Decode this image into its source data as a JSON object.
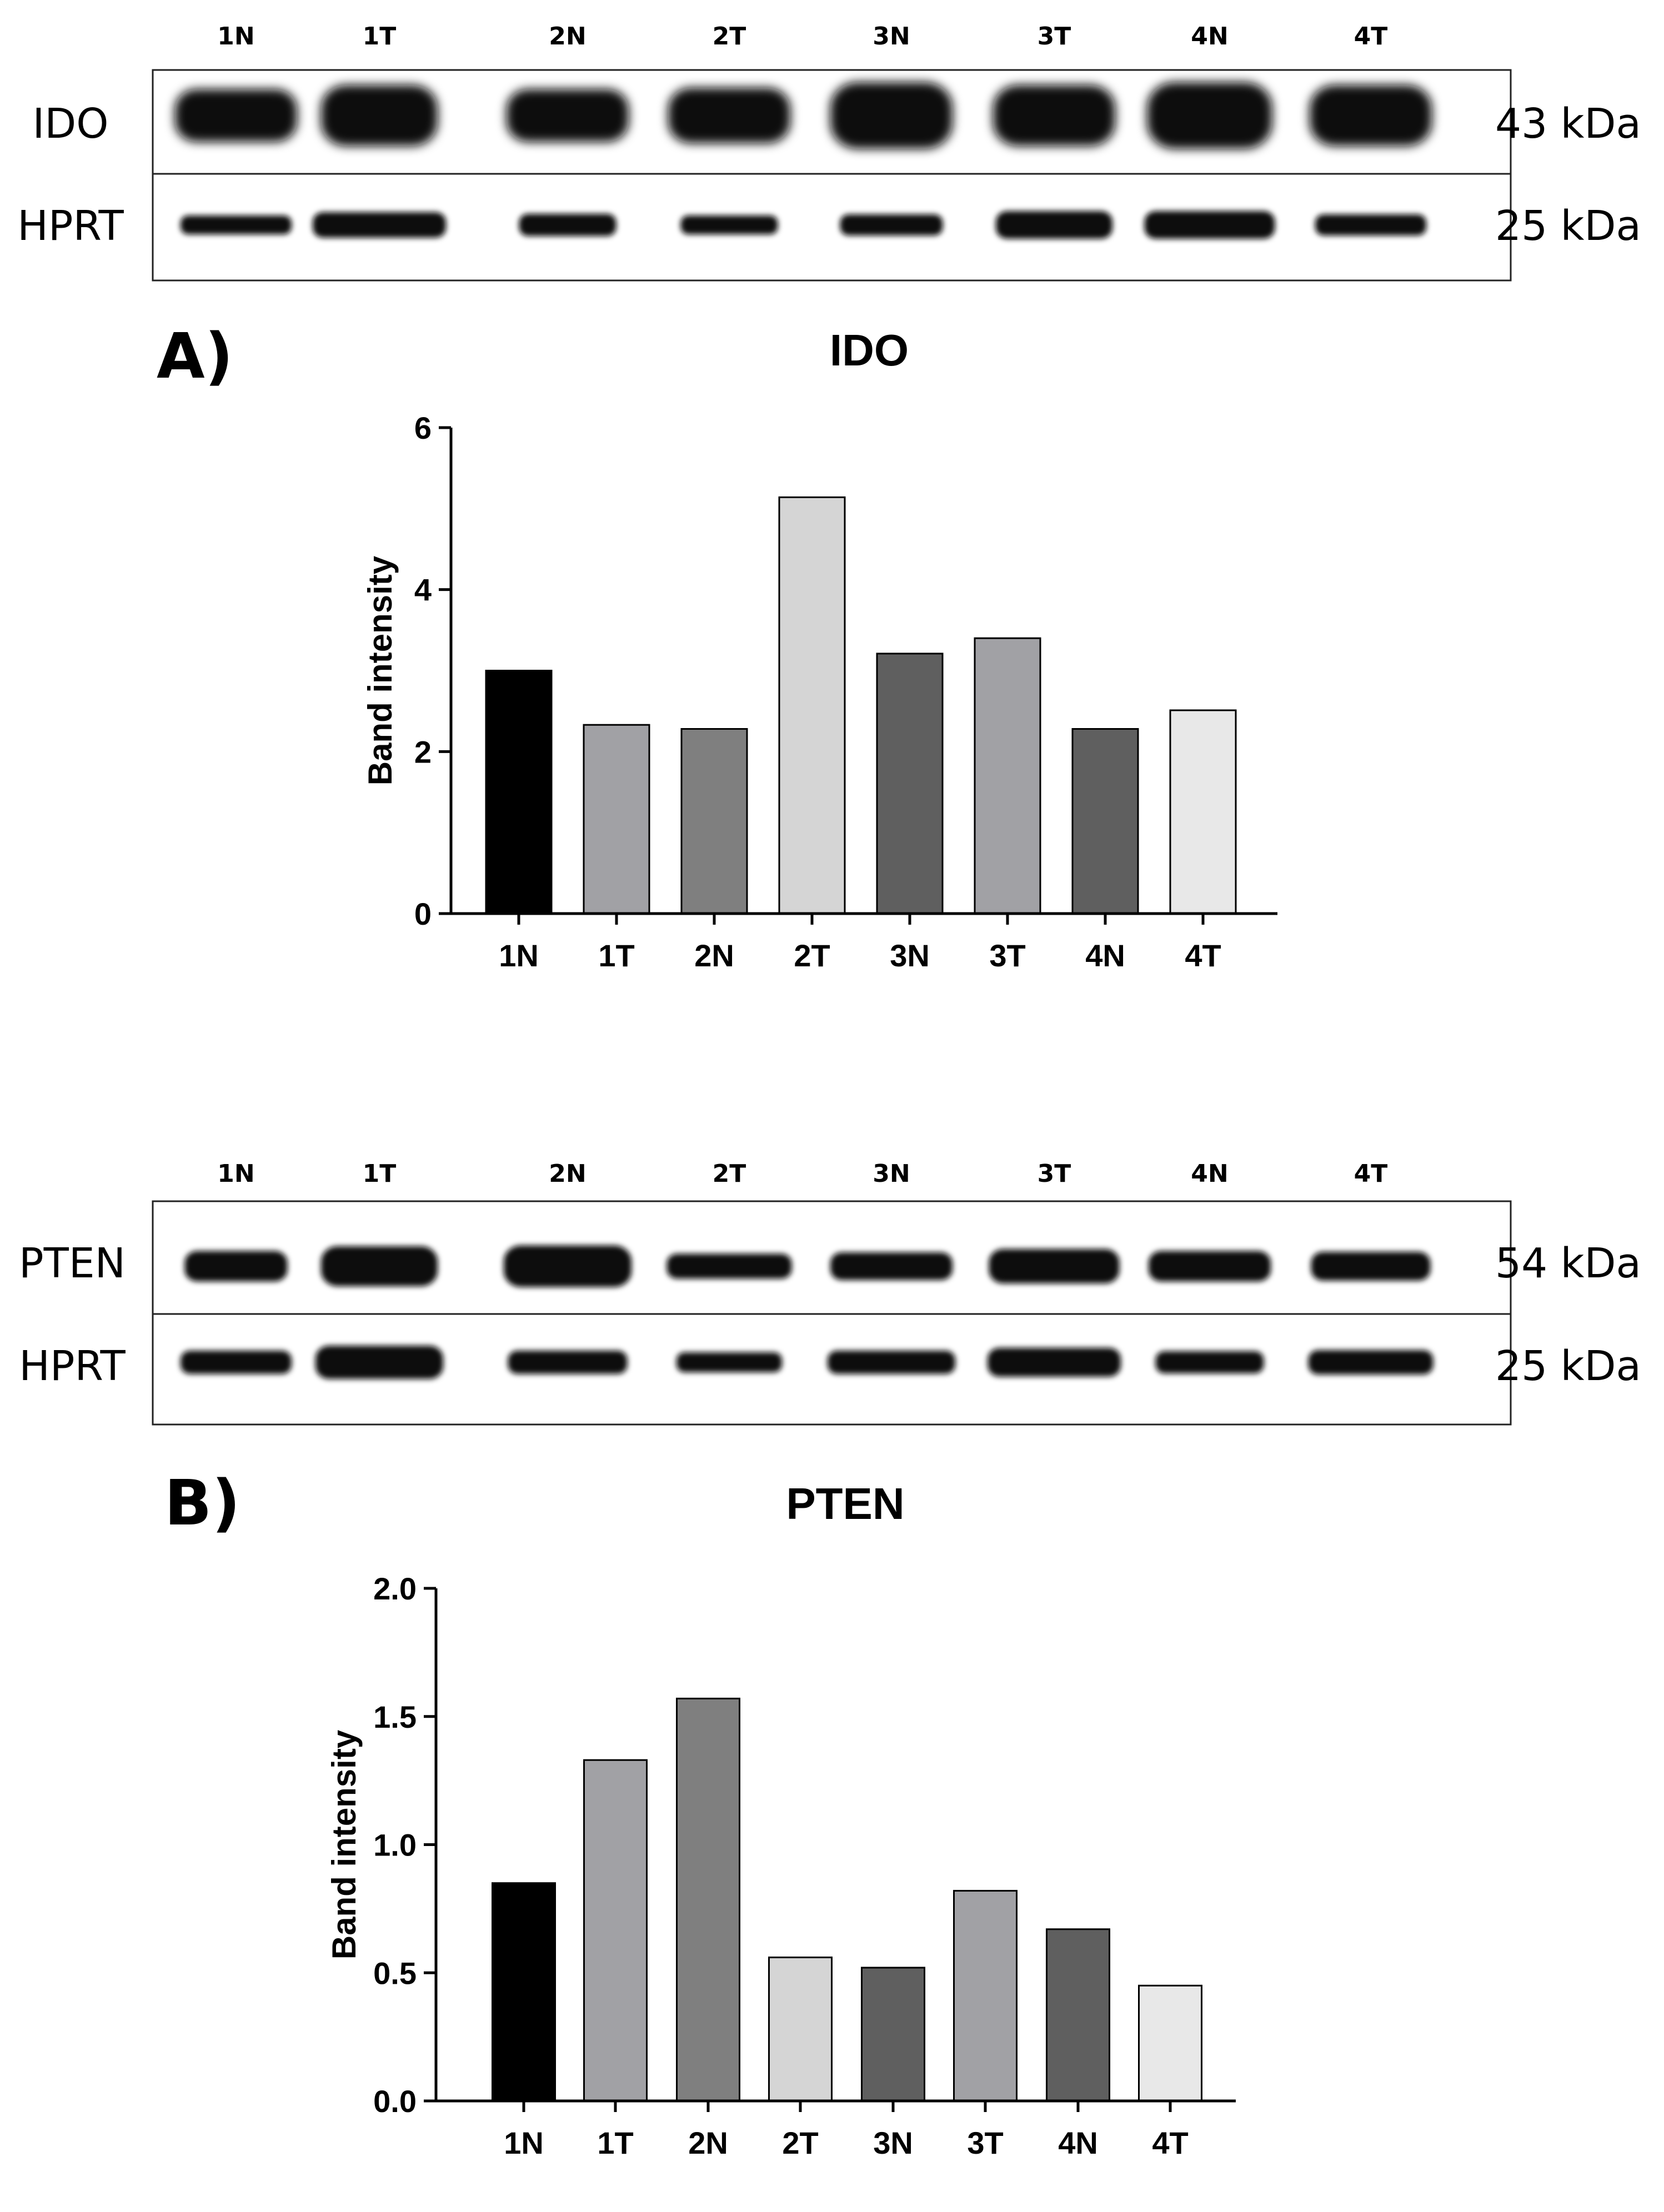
{
  "figure": {
    "panels": [
      {
        "letter": "A)",
        "blot": {
          "lanes": [
            "1N",
            "1T",
            "2N",
            "2T",
            "3N",
            "3T",
            "4N",
            "4T"
          ],
          "rows": [
            {
              "protein": "IDO",
              "size": "43 kDa"
            },
            {
              "protein": "HPRT",
              "size": "25 kDa"
            }
          ]
        }
      },
      {
        "letter": "B)",
        "blot": {
          "lanes": [
            "1N",
            "1T",
            "2N",
            "2T",
            "3N",
            "3T",
            "4N",
            "4T"
          ],
          "rows": [
            {
              "protein": "PTEN",
              "size": "54 kDa"
            },
            {
              "protein": "HPRT",
              "size": "25 kDa"
            }
          ]
        }
      }
    ]
  },
  "chart_data": [
    {
      "type": "bar",
      "title": "IDO",
      "xlabel": "",
      "ylabel": "Band intensity",
      "categories": [
        "1N",
        "1T",
        "2N",
        "2T",
        "3N",
        "3T",
        "4N",
        "4T"
      ],
      "values": [
        3.0,
        2.33,
        2.28,
        5.14,
        3.21,
        3.4,
        2.28,
        2.51
      ],
      "ylim": [
        0,
        6
      ],
      "yticks": [
        "0",
        "2",
        "4",
        "6"
      ],
      "grid": false,
      "colors": [
        "#000000",
        "#a1a1a5",
        "#7f7f7f",
        "#d5d5d5",
        "#5f5f5f",
        "#a1a1a5",
        "#5f5f5f",
        "#e8e8e8"
      ]
    },
    {
      "type": "bar",
      "title": "PTEN",
      "xlabel": "",
      "ylabel": "Band intensity",
      "categories": [
        "1N",
        "1T",
        "2N",
        "2T",
        "3N",
        "3T",
        "4N",
        "4T"
      ],
      "values": [
        0.85,
        1.33,
        1.57,
        0.56,
        0.52,
        0.82,
        0.67,
        0.45
      ],
      "ylim": [
        0,
        2
      ],
      "yticks": [
        "0.0",
        "0.5",
        "1.0",
        "1.5",
        "2.0"
      ],
      "grid": false,
      "colors": [
        "#000000",
        "#a1a1a5",
        "#7f7f7f",
        "#d5d5d5",
        "#5f5f5f",
        "#a1a1a5",
        "#5f5f5f",
        "#e8e8e8"
      ]
    }
  ]
}
